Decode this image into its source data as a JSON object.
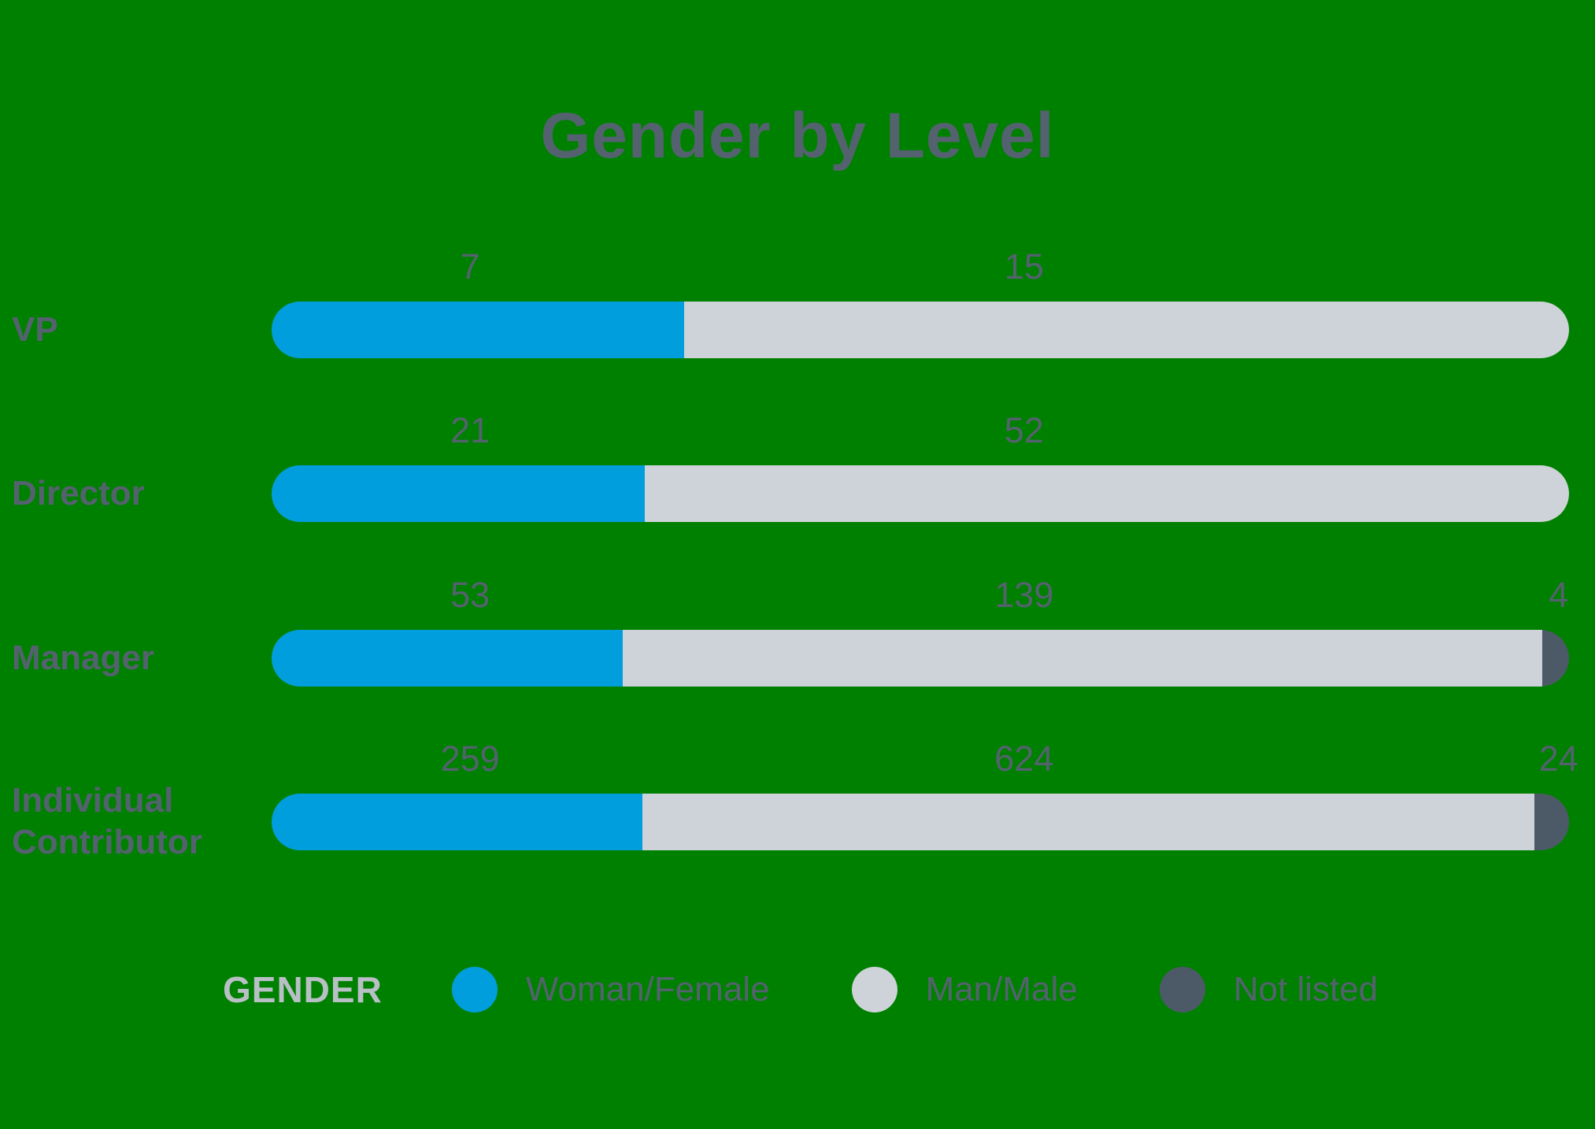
{
  "title": "Gender by Level",
  "colors": {
    "background": "#008000",
    "text": "#54626F",
    "legend_title_text": "#B8BFC5",
    "woman_female": "#009EDC",
    "man_male": "#CDD3D8",
    "not_listed": "#4C5A67"
  },
  "chart_data": {
    "type": "bar",
    "orientation": "horizontal",
    "stacked": true,
    "normalized_full_width": true,
    "title": "Gender by Level",
    "categories": [
      "VP",
      "Director",
      "Manager",
      "Individual Contributor"
    ],
    "series": [
      {
        "name": "Woman/Female",
        "color": "#009EDC",
        "values": [
          7,
          21,
          53,
          259
        ]
      },
      {
        "name": "Man/Male",
        "color": "#CDD3D8",
        "values": [
          15,
          52,
          139,
          624
        ]
      },
      {
        "name": "Not listed",
        "color": "#4C5A67",
        "values": [
          0,
          0,
          4,
          24
        ]
      }
    ],
    "value_labels_shown": true,
    "legend": {
      "title": "GENDER",
      "position": "bottom"
    },
    "grid": false,
    "axes_shown": false
  }
}
